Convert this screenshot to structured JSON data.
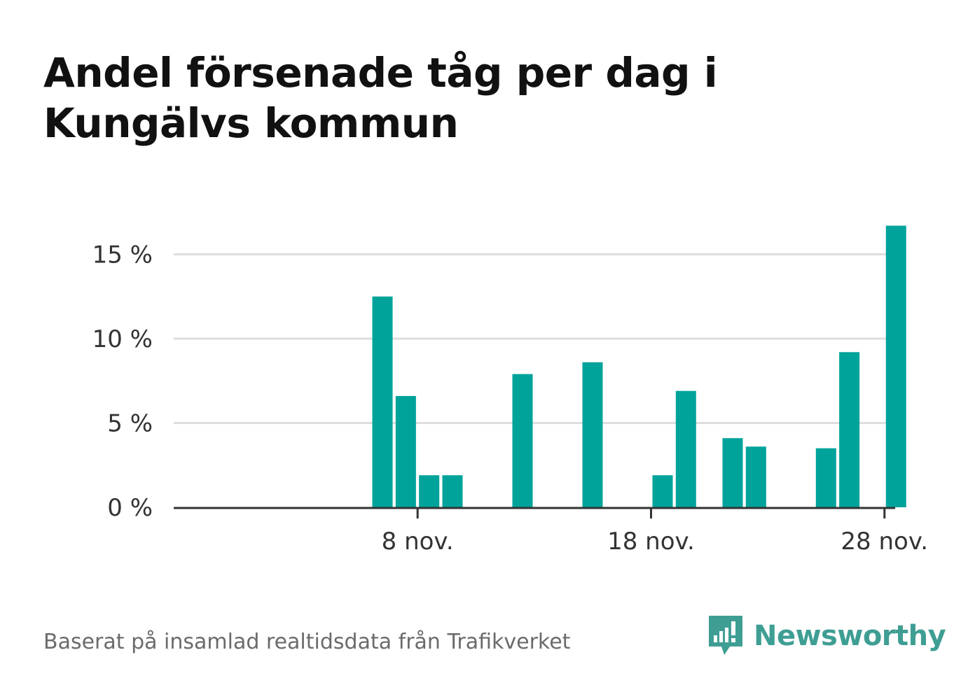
{
  "title": "Andel försenade tåg per dag i Kungälvs kommun",
  "footer": {
    "source": "Baserat på insamlad realtidsdata från Trafikverket",
    "brand": "Newsworthy"
  },
  "colors": {
    "bar": "#00a39a",
    "grid": "#dddddd",
    "axis": "#333333",
    "brand": "#3f9e94"
  },
  "chart_data": {
    "type": "bar",
    "x": [
      "2 nov.",
      "3 nov.",
      "4 nov.",
      "5 nov.",
      "6 nov.",
      "7 nov.",
      "8 nov.",
      "9 nov.",
      "10 nov.",
      "11 nov.",
      "12 nov.",
      "13 nov.",
      "14 nov.",
      "15 nov.",
      "16 nov.",
      "17 nov.",
      "18 nov.",
      "19 nov.",
      "20 nov.",
      "21 nov.",
      "22 nov.",
      "23 nov.",
      "24 nov.",
      "25 nov.",
      "26 nov.",
      "27 nov.",
      "28 nov.",
      "29 nov."
    ],
    "values": [
      null,
      null,
      null,
      null,
      12.5,
      6.6,
      1.9,
      1.9,
      0,
      0,
      7.9,
      null,
      null,
      8.6,
      0,
      0,
      1.9,
      6.9,
      null,
      4.1,
      3.6,
      null,
      null,
      3.5,
      9.2,
      null,
      16.7,
      null
    ],
    "xticks": [
      "8 nov.",
      "18 nov.",
      "28 nov."
    ],
    "yticks": [
      "0 %",
      "5 %",
      "10 %",
      "15 %"
    ],
    "ytick_values": [
      0,
      5,
      10,
      15
    ],
    "ylim": [
      0,
      17
    ],
    "xlabel": "",
    "ylabel": "",
    "grid": true,
    "legend": "none"
  }
}
